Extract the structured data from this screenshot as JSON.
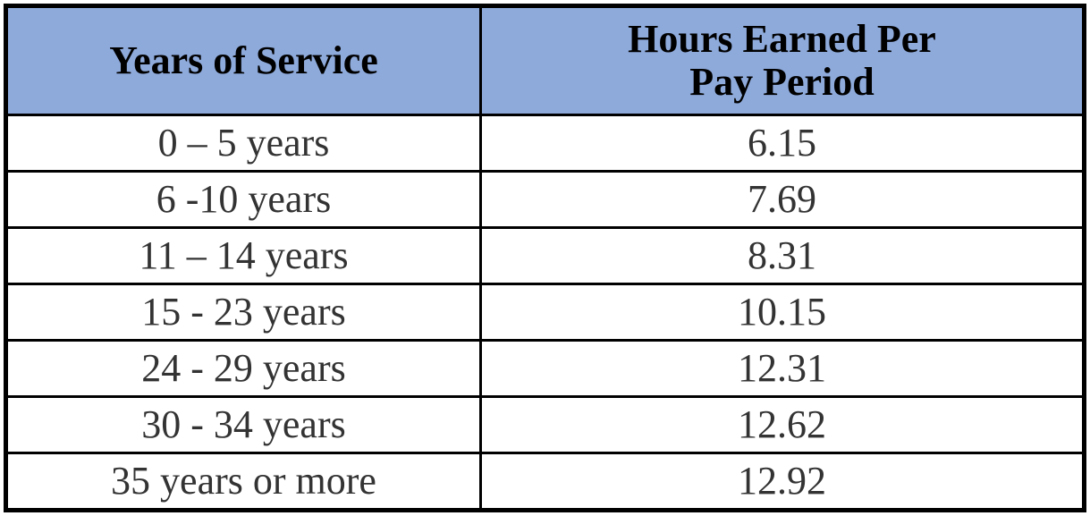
{
  "table": {
    "header": [
      "Years of Service",
      "Hours Earned Per Pay Period"
    ],
    "rows": [
      [
        "0 – 5 years",
        "6.15"
      ],
      [
        "6 -10 years",
        "7.69"
      ],
      [
        "11 – 14 years",
        "8.31"
      ],
      [
        "15 - 23 years",
        "10.15"
      ],
      [
        "24 - 29 years",
        "12.31"
      ],
      [
        "30 - 34 years",
        "12.62"
      ],
      [
        "35 years or more",
        "12.92"
      ]
    ]
  }
}
